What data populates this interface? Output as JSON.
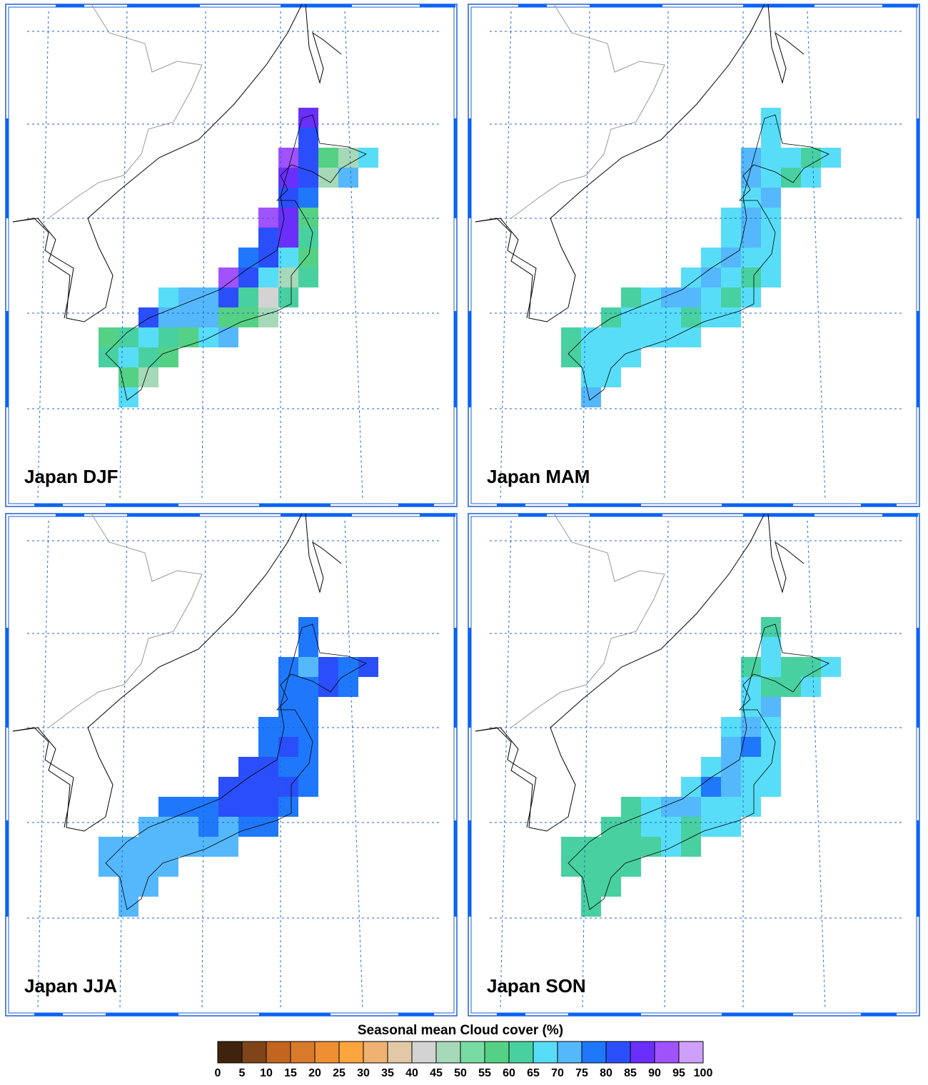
{
  "panels": [
    {
      "title": "Japan DJF",
      "values": [
        [
          null,
          null,
          null,
          null,
          null,
          null,
          null,
          null,
          null,
          null,
          87,
          null,
          null,
          null
        ],
        [
          null,
          null,
          null,
          null,
          null,
          null,
          null,
          null,
          null,
          null,
          82,
          null,
          null,
          null
        ],
        [
          null,
          null,
          null,
          null,
          null,
          null,
          null,
          null,
          null,
          90,
          82,
          57,
          45,
          67
        ],
        [
          null,
          null,
          null,
          null,
          null,
          null,
          null,
          null,
          null,
          87,
          82,
          45,
          72,
          null
        ],
        [
          null,
          null,
          null,
          null,
          null,
          null,
          null,
          null,
          null,
          82,
          77,
          null,
          null,
          null
        ],
        [
          null,
          null,
          null,
          null,
          null,
          null,
          null,
          null,
          90,
          87,
          57,
          null,
          null,
          null
        ],
        [
          null,
          null,
          null,
          null,
          null,
          null,
          null,
          null,
          82,
          87,
          62,
          null,
          null,
          null
        ],
        [
          null,
          null,
          null,
          null,
          null,
          null,
          null,
          77,
          82,
          67,
          57,
          null,
          null,
          null
        ],
        [
          null,
          null,
          null,
          null,
          null,
          null,
          90,
          82,
          67,
          45,
          62,
          null,
          null,
          null
        ],
        [
          null,
          null,
          null,
          67,
          72,
          72,
          82,
          62,
          40,
          62,
          null,
          null,
          null,
          null
        ],
        [
          null,
          null,
          82,
          72,
          72,
          72,
          57,
          57,
          45,
          null,
          null,
          null,
          null,
          null
        ],
        [
          57,
          62,
          67,
          62,
          57,
          67,
          72,
          null,
          null,
          null,
          null,
          null,
          null,
          null
        ],
        [
          62,
          67,
          62,
          57,
          null,
          null,
          null,
          null,
          null,
          null,
          null,
          null,
          null,
          null
        ],
        [
          null,
          57,
          45,
          null,
          null,
          null,
          null,
          null,
          null,
          null,
          null,
          null,
          null,
          null
        ],
        [
          null,
          67,
          null,
          null,
          null,
          null,
          null,
          null,
          null,
          null,
          null,
          null,
          null,
          null
        ]
      ]
    },
    {
      "title": "Japan MAM",
      "values": [
        [
          null,
          null,
          null,
          null,
          null,
          null,
          null,
          null,
          null,
          null,
          67,
          null,
          null,
          null
        ],
        [
          null,
          null,
          null,
          null,
          null,
          null,
          null,
          null,
          null,
          null,
          67,
          null,
          null,
          null
        ],
        [
          null,
          null,
          null,
          null,
          null,
          null,
          null,
          null,
          null,
          72,
          67,
          67,
          62,
          67
        ],
        [
          null,
          null,
          null,
          null,
          null,
          null,
          null,
          null,
          null,
          72,
          67,
          62,
          67,
          null
        ],
        [
          null,
          null,
          null,
          null,
          null,
          null,
          null,
          null,
          null,
          67,
          72,
          null,
          null,
          null
        ],
        [
          null,
          null,
          null,
          null,
          null,
          null,
          null,
          null,
          67,
          72,
          67,
          null,
          null,
          null
        ],
        [
          null,
          null,
          null,
          null,
          null,
          null,
          null,
          null,
          67,
          72,
          67,
          null,
          null,
          null
        ],
        [
          null,
          null,
          null,
          null,
          null,
          null,
          null,
          67,
          72,
          67,
          67,
          null,
          null,
          null
        ],
        [
          null,
          null,
          null,
          null,
          null,
          null,
          67,
          72,
          67,
          62,
          67,
          null,
          null,
          null
        ],
        [
          null,
          null,
          null,
          62,
          67,
          72,
          72,
          67,
          62,
          67,
          null,
          null,
          null,
          null
        ],
        [
          null,
          null,
          62,
          67,
          67,
          67,
          62,
          67,
          67,
          null,
          null,
          null,
          null,
          null
        ],
        [
          62,
          67,
          67,
          67,
          67,
          67,
          67,
          null,
          null,
          null,
          null,
          null,
          null,
          null
        ],
        [
          62,
          67,
          67,
          67,
          null,
          null,
          null,
          null,
          null,
          null,
          null,
          null,
          null,
          null
        ],
        [
          null,
          67,
          67,
          null,
          null,
          null,
          null,
          null,
          null,
          null,
          null,
          null,
          null,
          null
        ],
        [
          null,
          72,
          null,
          null,
          null,
          null,
          null,
          null,
          null,
          null,
          null,
          null,
          null,
          null
        ]
      ]
    },
    {
      "title": "Japan JJA",
      "values": [
        [
          null,
          null,
          null,
          null,
          null,
          null,
          null,
          null,
          null,
          null,
          77,
          null,
          null,
          null
        ],
        [
          null,
          null,
          null,
          null,
          null,
          null,
          null,
          null,
          null,
          null,
          77,
          null,
          null,
          null
        ],
        [
          null,
          null,
          null,
          null,
          null,
          null,
          null,
          null,
          null,
          77,
          72,
          82,
          77,
          82
        ],
        [
          null,
          null,
          null,
          null,
          null,
          null,
          null,
          null,
          null,
          77,
          77,
          82,
          77,
          null
        ],
        [
          null,
          null,
          null,
          null,
          null,
          null,
          null,
          null,
          null,
          77,
          77,
          null,
          null,
          null
        ],
        [
          null,
          null,
          null,
          null,
          null,
          null,
          null,
          null,
          77,
          77,
          77,
          null,
          null,
          null
        ],
        [
          null,
          null,
          null,
          null,
          null,
          null,
          null,
          null,
          77,
          82,
          77,
          null,
          null,
          null
        ],
        [
          null,
          null,
          null,
          null,
          null,
          null,
          null,
          82,
          82,
          77,
          77,
          null,
          null,
          null
        ],
        [
          null,
          null,
          null,
          null,
          null,
          null,
          82,
          82,
          82,
          82,
          77,
          null,
          null,
          null
        ],
        [
          null,
          null,
          null,
          77,
          77,
          77,
          82,
          82,
          82,
          77,
          null,
          null,
          null,
          null
        ],
        [
          null,
          null,
          72,
          72,
          72,
          77,
          72,
          77,
          77,
          null,
          null,
          null,
          null,
          null
        ],
        [
          72,
          72,
          72,
          72,
          72,
          72,
          72,
          null,
          null,
          null,
          null,
          null,
          null,
          null
        ],
        [
          72,
          72,
          72,
          72,
          null,
          null,
          null,
          null,
          null,
          null,
          null,
          null,
          null,
          null
        ],
        [
          null,
          72,
          72,
          null,
          null,
          null,
          null,
          null,
          null,
          null,
          null,
          null,
          null,
          null
        ],
        [
          null,
          72,
          null,
          null,
          null,
          null,
          null,
          null,
          null,
          null,
          null,
          null,
          null,
          null
        ]
      ]
    },
    {
      "title": "Japan SON",
      "values": [
        [
          null,
          null,
          null,
          null,
          null,
          null,
          null,
          null,
          null,
          null,
          62,
          null,
          null,
          null
        ],
        [
          null,
          null,
          null,
          null,
          null,
          null,
          null,
          null,
          null,
          null,
          67,
          null,
          null,
          null
        ],
        [
          null,
          null,
          null,
          null,
          null,
          null,
          null,
          null,
          null,
          62,
          67,
          62,
          62,
          67
        ],
        [
          null,
          null,
          null,
          null,
          null,
          null,
          null,
          null,
          null,
          67,
          62,
          62,
          67,
          null
        ],
        [
          null,
          null,
          null,
          null,
          null,
          null,
          null,
          null,
          null,
          67,
          72,
          null,
          null,
          null
        ],
        [
          null,
          null,
          null,
          null,
          null,
          null,
          null,
          null,
          67,
          72,
          67,
          null,
          null,
          null
        ],
        [
          null,
          null,
          null,
          null,
          null,
          null,
          null,
          null,
          72,
          77,
          67,
          null,
          null,
          null
        ],
        [
          null,
          null,
          null,
          null,
          null,
          null,
          null,
          67,
          72,
          67,
          67,
          null,
          null,
          null
        ],
        [
          null,
          null,
          null,
          null,
          null,
          null,
          67,
          77,
          72,
          67,
          67,
          null,
          null,
          null
        ],
        [
          null,
          null,
          null,
          62,
          67,
          72,
          72,
          67,
          67,
          67,
          null,
          null,
          null,
          null
        ],
        [
          null,
          null,
          62,
          62,
          67,
          67,
          62,
          67,
          67,
          null,
          null,
          null,
          null,
          null
        ],
        [
          62,
          62,
          62,
          62,
          62,
          67,
          62,
          null,
          null,
          null,
          null,
          null,
          null,
          null
        ],
        [
          62,
          62,
          62,
          62,
          null,
          null,
          null,
          null,
          null,
          null,
          null,
          null,
          null,
          null
        ],
        [
          null,
          62,
          62,
          null,
          null,
          null,
          null,
          null,
          null,
          null,
          null,
          null,
          null,
          null
        ],
        [
          null,
          62,
          null,
          null,
          null,
          null,
          null,
          null,
          null,
          null,
          null,
          null,
          null,
          null
        ]
      ]
    }
  ],
  "colorbar": {
    "title": "Seasonal mean Cloud cover (%)",
    "levels": [
      0,
      5,
      10,
      15,
      20,
      25,
      30,
      35,
      40,
      45,
      50,
      55,
      60,
      65,
      70,
      75,
      80,
      85,
      90,
      95,
      100
    ],
    "colors": [
      "#40230d",
      "#7f4518",
      "#c2651f",
      "#d87a2a",
      "#ee8f33",
      "#fda53e",
      "#f0b272",
      "#e3c8a6",
      "#d3d3d3",
      "#a6d9b8",
      "#78dca2",
      "#55d185",
      "#49d0a0",
      "#58ddf8",
      "#55b8fc",
      "#1f78fb",
      "#2a4ffa",
      "#6a2ffb",
      "#a052fb",
      "#cfa0fb"
    ]
  }
}
